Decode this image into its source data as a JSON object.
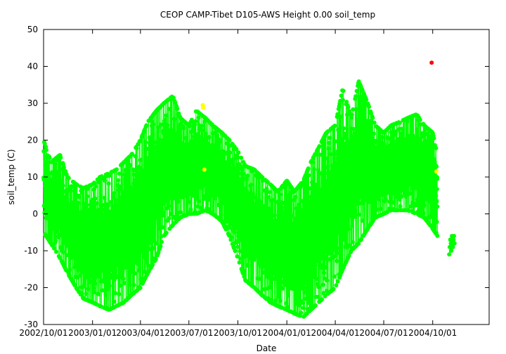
{
  "chart_data": {
    "type": "scatter",
    "title": "CEOP CAMP-Tibet D105-AWS Height 0.00 soil_temp",
    "xlabel": "Date",
    "ylabel": "soil_temp (C)",
    "xlim": [
      "2002-10-01",
      "2005-01-15"
    ],
    "ylim": [
      -30,
      50
    ],
    "yticks": [
      -30,
      -20,
      -10,
      0,
      10,
      20,
      30,
      40,
      50
    ],
    "xticks": [
      "2002/10/01",
      "2003/01/01",
      "2003/04/01",
      "2003/07/01",
      "2003/10/01",
      "2004/01/01",
      "2004/04/01",
      "2004/07/01",
      "2004/10/01"
    ],
    "grid": false,
    "legend": "none",
    "series": [
      {
        "color": "#00ff00",
        "marker": "circle",
        "connected": true,
        "description": "dense diurnal soil temperature record",
        "envelope": {
          "dates": [
            "2002-10-01",
            "2002-10-15",
            "2002-11-01",
            "2002-11-15",
            "2002-12-01",
            "2002-12-15",
            "2003-01-01",
            "2003-01-15",
            "2003-02-01",
            "2003-02-15",
            "2003-03-01",
            "2003-03-15",
            "2003-04-01",
            "2003-04-15",
            "2003-05-01",
            "2003-05-15",
            "2003-06-01",
            "2003-06-15",
            "2003-07-01",
            "2003-07-15",
            "2003-08-01",
            "2003-08-15",
            "2003-09-01",
            "2003-09-15",
            "2003-10-01",
            "2003-10-15",
            "2003-11-01",
            "2003-11-15",
            "2003-12-01",
            "2003-12-15",
            "2004-01-01",
            "2004-01-15",
            "2004-02-01",
            "2004-02-15",
            "2004-03-01",
            "2004-03-15",
            "2004-04-01",
            "2004-04-15",
            "2004-05-01",
            "2004-05-15",
            "2004-06-01",
            "2004-06-15",
            "2004-07-01",
            "2004-07-15",
            "2004-08-01",
            "2004-08-15",
            "2004-09-01",
            "2004-09-15",
            "2004-10-01",
            "2004-10-10"
          ],
          "max": [
            20,
            14,
            16,
            10,
            8,
            7,
            8,
            10,
            11,
            12,
            14,
            16,
            20,
            25,
            28,
            30,
            32,
            26,
            24,
            28,
            26,
            24,
            22,
            20,
            17,
            13,
            12,
            10,
            8,
            6,
            9,
            6,
            9,
            14,
            18,
            22,
            24,
            34,
            26,
            36,
            30,
            24,
            22,
            24,
            25,
            26,
            27,
            24,
            22,
            16
          ],
          "min": [
            -5,
            -8,
            -12,
            -16,
            -20,
            -23,
            -24,
            -25,
            -26,
            -25,
            -24,
            -22,
            -20,
            -16,
            -12,
            -6,
            -3,
            -1,
            0,
            0,
            1,
            0,
            -2,
            -6,
            -12,
            -18,
            -20,
            -22,
            -24,
            -25,
            -26,
            -27,
            -28,
            -26,
            -24,
            -22,
            -20,
            -15,
            -10,
            -8,
            -4,
            -1,
            0,
            1,
            1,
            1,
            0,
            -1,
            -4,
            -6
          ]
        }
      },
      {
        "color": "#00ff00",
        "marker": "circle",
        "connected": true,
        "points": [
          [
            "2004-11-01",
            -11
          ],
          [
            "2004-11-02",
            -9
          ],
          [
            "2004-11-03",
            -7
          ],
          [
            "2004-11-04",
            -8
          ],
          [
            "2004-11-05",
            -10
          ],
          [
            "2004-11-06",
            -6
          ],
          [
            "2004-11-07",
            -8
          ],
          [
            "2004-11-08",
            -9
          ],
          [
            "2004-11-09",
            -7
          ],
          [
            "2004-11-10",
            -6
          ],
          [
            "2004-11-11",
            -8
          ]
        ]
      },
      {
        "color": "#ffff00",
        "marker": "circle",
        "points": [
          [
            "2003-07-27",
            29.5
          ],
          [
            "2003-07-28",
            28.8
          ],
          [
            "2003-07-30",
            12
          ],
          [
            "2004-10-08",
            11.5
          ]
        ]
      },
      {
        "color": "#ff0000",
        "marker": "circle",
        "points": [
          [
            "2004-09-29",
            41
          ]
        ]
      }
    ]
  }
}
